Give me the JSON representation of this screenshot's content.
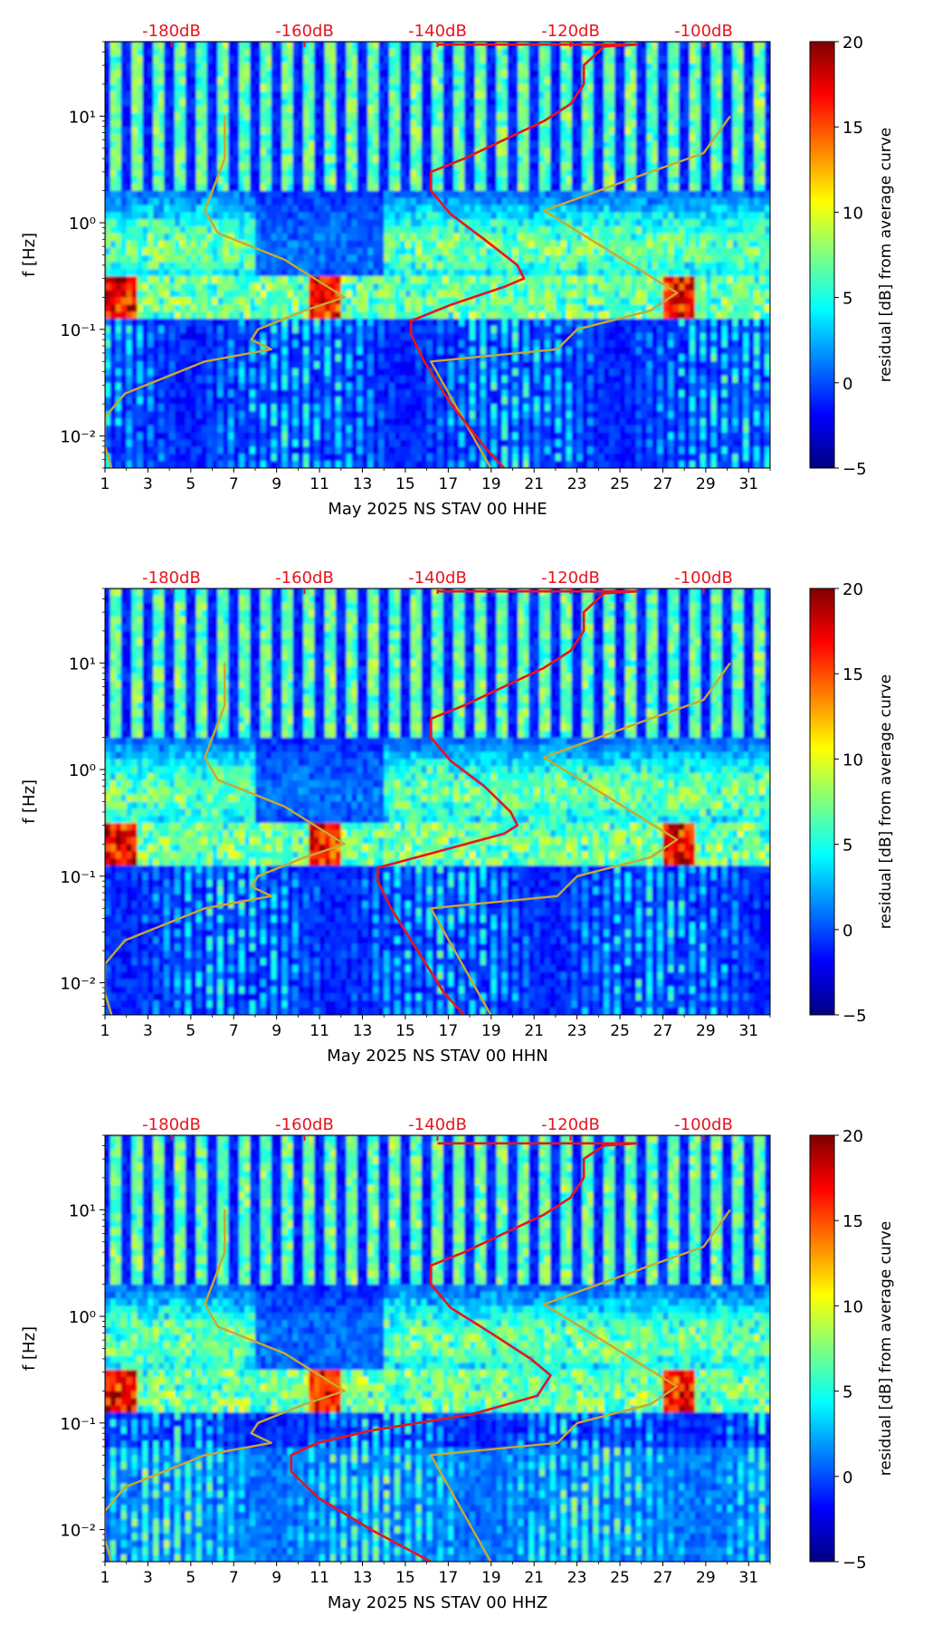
{
  "colormap": {
    "stops": [
      "#00007f",
      "#0000ff",
      "#007fff",
      "#00ffff",
      "#7fff7f",
      "#ffff00",
      "#ff7f00",
      "#ff0000",
      "#7f0000"
    ]
  },
  "line_colors": {
    "median_curve": "#e8141e",
    "noise_models": "#c8a832"
  },
  "chart_data": [
    {
      "type": "heatmap",
      "xlabel": "May 2025 NS STAV 00 HHE",
      "ylabel": "f [Hz]",
      "x_ticks": [
        "1",
        "3",
        "5",
        "7",
        "9",
        "11",
        "13",
        "15",
        "17",
        "19",
        "21",
        "23",
        "25",
        "27",
        "29",
        "31"
      ],
      "x_range": [
        1,
        32
      ],
      "y_ticks": [
        "10⁻²",
        "10⁻¹",
        "10⁰",
        "10¹"
      ],
      "y_range_hz": [
        0.005,
        50
      ],
      "top_axis_ticks": [
        "-180dB",
        "-160dB",
        "-140dB",
        "-120dB",
        "-100dB"
      ],
      "top_axis_range_db": [
        -190,
        -90
      ],
      "colorbar": {
        "label": "residual [dB] from average curve",
        "ticks": [
          "−5",
          "0",
          "5",
          "10",
          "15",
          "20"
        ],
        "range": [
          -5,
          20
        ]
      },
      "median_psd_curve": [
        [
          -130,
          0.005
        ],
        [
          -133,
          0.008
        ],
        [
          -138,
          0.02
        ],
        [
          -142,
          0.05
        ],
        [
          -144,
          0.09
        ],
        [
          -144,
          0.12
        ],
        [
          -138,
          0.17
        ],
        [
          -130,
          0.25
        ],
        [
          -127,
          0.3
        ],
        [
          -128,
          0.4
        ],
        [
          -133,
          0.7
        ],
        [
          -138,
          1.2
        ],
        [
          -141,
          2
        ],
        [
          -141,
          3
        ],
        [
          -136,
          4
        ],
        [
          -130,
          6
        ],
        [
          -124,
          9
        ],
        [
          -120,
          13
        ],
        [
          -118,
          20
        ],
        [
          -118,
          30
        ],
        [
          -115,
          45
        ],
        [
          -110,
          47
        ],
        [
          -140,
          47
        ]
      ],
      "noise_model_low": [
        [
          -189,
          0.005
        ],
        [
          -190,
          0.008
        ],
        [
          -190,
          0.015
        ],
        [
          -187,
          0.025
        ],
        [
          -175,
          0.05
        ],
        [
          -165,
          0.065
        ],
        [
          -168,
          0.08
        ],
        [
          -167,
          0.1
        ],
        [
          -160,
          0.15
        ],
        [
          -154,
          0.2
        ],
        [
          -163,
          0.45
        ],
        [
          -173,
          0.8
        ],
        [
          -175,
          1.3
        ],
        [
          -172,
          4
        ],
        [
          -172,
          10
        ]
      ],
      "noise_model_high": [
        [
          -132,
          0.005
        ],
        [
          -141,
          0.05
        ],
        [
          -122,
          0.065
        ],
        [
          -119,
          0.1
        ],
        [
          -108,
          0.15
        ],
        [
          -104,
          0.22
        ],
        [
          -124,
          1.3
        ],
        [
          -108,
          3
        ],
        [
          -100,
          4.5
        ],
        [
          -96,
          10
        ]
      ]
    },
    {
      "type": "heatmap",
      "xlabel": "May 2025 NS STAV 00 HHN",
      "ylabel": "f [Hz]",
      "x_ticks": [
        "1",
        "3",
        "5",
        "7",
        "9",
        "11",
        "13",
        "15",
        "17",
        "19",
        "21",
        "23",
        "25",
        "27",
        "29",
        "31"
      ],
      "x_range": [
        1,
        32
      ],
      "y_ticks": [
        "10⁻²",
        "10⁻¹",
        "10⁰",
        "10¹"
      ],
      "y_range_hz": [
        0.005,
        50
      ],
      "top_axis_ticks": [
        "-180dB",
        "-160dB",
        "-140dB",
        "-120dB",
        "-100dB"
      ],
      "top_axis_range_db": [
        -190,
        -90
      ],
      "colorbar": {
        "label": "residual [dB] from average curve",
        "ticks": [
          "−5",
          "0",
          "5",
          "10",
          "15",
          "20"
        ],
        "range": [
          -5,
          20
        ]
      },
      "median_psd_curve": [
        [
          -136,
          0.005
        ],
        [
          -139,
          0.008
        ],
        [
          -143,
          0.02
        ],
        [
          -147,
          0.05
        ],
        [
          -149,
          0.09
        ],
        [
          -149,
          0.12
        ],
        [
          -140,
          0.17
        ],
        [
          -130,
          0.25
        ],
        [
          -128,
          0.3
        ],
        [
          -129,
          0.4
        ],
        [
          -133,
          0.7
        ],
        [
          -138,
          1.2
        ],
        [
          -141,
          2
        ],
        [
          -141,
          3
        ],
        [
          -136,
          4
        ],
        [
          -130,
          6
        ],
        [
          -124,
          9
        ],
        [
          -120,
          13
        ],
        [
          -118,
          20
        ],
        [
          -118,
          30
        ],
        [
          -115,
          45
        ],
        [
          -110,
          47
        ],
        [
          -140,
          47
        ]
      ],
      "noise_model_low": [
        [
          -189,
          0.005
        ],
        [
          -190,
          0.008
        ],
        [
          -190,
          0.015
        ],
        [
          -187,
          0.025
        ],
        [
          -175,
          0.05
        ],
        [
          -165,
          0.065
        ],
        [
          -168,
          0.08
        ],
        [
          -167,
          0.1
        ],
        [
          -160,
          0.15
        ],
        [
          -154,
          0.2
        ],
        [
          -163,
          0.45
        ],
        [
          -173,
          0.8
        ],
        [
          -175,
          1.3
        ],
        [
          -172,
          4
        ],
        [
          -172,
          10
        ]
      ],
      "noise_model_high": [
        [
          -132,
          0.005
        ],
        [
          -141,
          0.05
        ],
        [
          -122,
          0.065
        ],
        [
          -119,
          0.1
        ],
        [
          -108,
          0.15
        ],
        [
          -104,
          0.22
        ],
        [
          -124,
          1.3
        ],
        [
          -108,
          3
        ],
        [
          -100,
          4.5
        ],
        [
          -96,
          10
        ]
      ]
    },
    {
      "type": "heatmap",
      "xlabel": "May 2025 NS STAV 00 HHZ",
      "ylabel": "f [Hz]",
      "x_ticks": [
        "1",
        "3",
        "5",
        "7",
        "9",
        "11",
        "13",
        "15",
        "17",
        "19",
        "21",
        "23",
        "25",
        "27",
        "29",
        "31"
      ],
      "x_range": [
        1,
        32
      ],
      "y_ticks": [
        "10⁻²",
        "10⁻¹",
        "10⁰",
        "10¹"
      ],
      "y_range_hz": [
        0.005,
        50
      ],
      "top_axis_ticks": [
        "-180dB",
        "-160dB",
        "-140dB",
        "-120dB",
        "-100dB"
      ],
      "top_axis_range_db": [
        -190,
        -90
      ],
      "colorbar": {
        "label": "residual [dB] from average curve",
        "ticks": [
          "−5",
          "0",
          "5",
          "10",
          "15",
          "20"
        ],
        "range": [
          -5,
          20
        ]
      },
      "median_psd_curve": [
        [
          -141,
          0.005
        ],
        [
          -150,
          0.01
        ],
        [
          -158,
          0.02
        ],
        [
          -162,
          0.035
        ],
        [
          -162,
          0.05
        ],
        [
          -158,
          0.065
        ],
        [
          -150,
          0.085
        ],
        [
          -135,
          0.12
        ],
        [
          -125,
          0.18
        ],
        [
          -123,
          0.28
        ],
        [
          -126,
          0.4
        ],
        [
          -132,
          0.7
        ],
        [
          -138,
          1.2
        ],
        [
          -141,
          2
        ],
        [
          -141,
          3
        ],
        [
          -136,
          4
        ],
        [
          -130,
          6
        ],
        [
          -124,
          9
        ],
        [
          -120,
          13
        ],
        [
          -118,
          20
        ],
        [
          -118,
          30
        ],
        [
          -115,
          40
        ],
        [
          -110,
          42
        ],
        [
          -140,
          42
        ]
      ],
      "noise_model_low": [
        [
          -189,
          0.005
        ],
        [
          -190,
          0.008
        ],
        [
          -190,
          0.015
        ],
        [
          -187,
          0.025
        ],
        [
          -175,
          0.05
        ],
        [
          -165,
          0.065
        ],
        [
          -168,
          0.08
        ],
        [
          -167,
          0.1
        ],
        [
          -160,
          0.15
        ],
        [
          -154,
          0.2
        ],
        [
          -163,
          0.45
        ],
        [
          -173,
          0.8
        ],
        [
          -175,
          1.3
        ],
        [
          -172,
          4
        ],
        [
          -172,
          10
        ]
      ],
      "noise_model_high": [
        [
          -132,
          0.005
        ],
        [
          -141,
          0.05
        ],
        [
          -122,
          0.065
        ],
        [
          -119,
          0.1
        ],
        [
          -108,
          0.15
        ],
        [
          -104,
          0.22
        ],
        [
          -124,
          1.3
        ],
        [
          -108,
          3
        ],
        [
          -100,
          4.5
        ],
        [
          -96,
          10
        ]
      ]
    }
  ]
}
